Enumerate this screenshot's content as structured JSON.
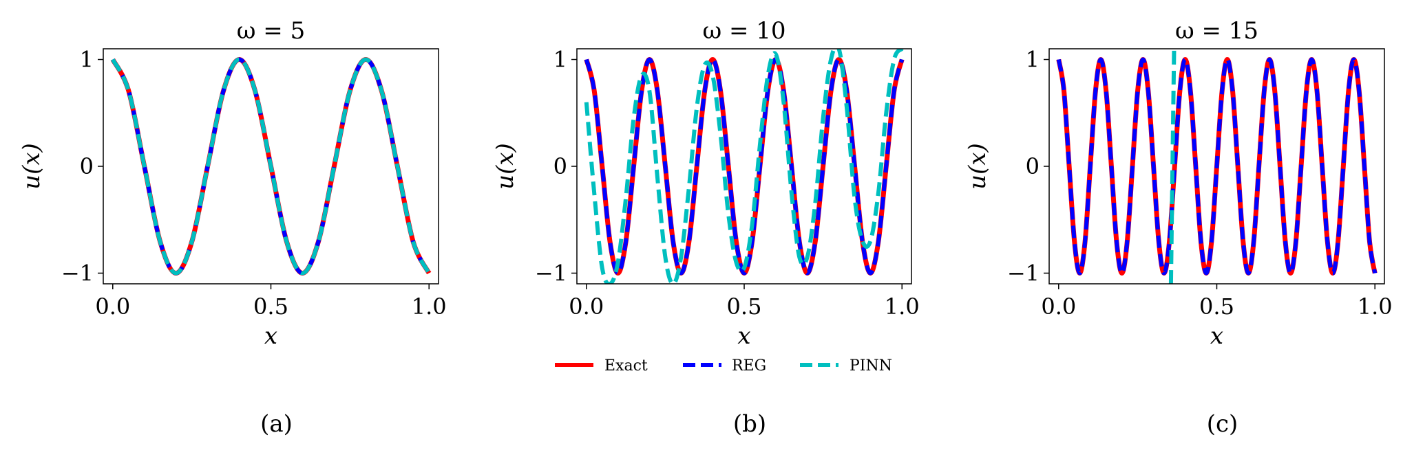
{
  "figure": {
    "legend": [
      {
        "name": "Exact",
        "color": "#ff0000",
        "dash": "solid"
      },
      {
        "name": "REG",
        "color": "#0000ff",
        "dash": "dashed"
      },
      {
        "name": "PINN",
        "color": "#00bfbf",
        "dash": "dashed"
      }
    ],
    "legend_placement": "below middle panel"
  },
  "chart_data": [
    {
      "type": "line",
      "title": "ω = 5",
      "caption": "(a)",
      "xlabel": "x",
      "ylabel": "u(x)",
      "xlim": [
        -0.03,
        1.03
      ],
      "ylim": [
        -1.1,
        1.1
      ],
      "xticks": [
        0.0,
        0.5,
        1.0
      ],
      "xticklabels": [
        "0.0",
        "0.5",
        "1.0"
      ],
      "yticks": [
        -1,
        0,
        1
      ],
      "yticklabels": [
        "−1",
        "0",
        "1"
      ],
      "grid": false,
      "series": [
        {
          "name": "Exact",
          "color": "#ff0000",
          "x": [
            0.0,
            0.05,
            0.1,
            0.15,
            0.2,
            0.25,
            0.3,
            0.35,
            0.4,
            0.45,
            0.5,
            0.55,
            0.6,
            0.65,
            0.7,
            0.75,
            0.8,
            0.85,
            0.9,
            0.95,
            1.0
          ],
          "y": [
            1.0,
            0.707,
            0.0,
            -0.707,
            -1.0,
            -0.707,
            0.0,
            0.707,
            1.0,
            0.707,
            0.0,
            -0.707,
            -1.0,
            -0.707,
            0.0,
            0.707,
            1.0,
            0.707,
            0.0,
            -0.707,
            -1.0
          ]
        },
        {
          "name": "REG",
          "color": "#0000ff",
          "x": [
            0.0,
            0.05,
            0.1,
            0.15,
            0.2,
            0.25,
            0.3,
            0.35,
            0.4,
            0.45,
            0.5,
            0.55,
            0.6,
            0.65,
            0.7,
            0.75,
            0.8,
            0.85,
            0.9,
            0.95,
            1.0
          ],
          "y": [
            1.0,
            0.707,
            0.0,
            -0.707,
            -1.0,
            -0.707,
            0.0,
            0.707,
            1.0,
            0.707,
            0.0,
            -0.707,
            -1.0,
            -0.707,
            0.0,
            0.707,
            1.0,
            0.707,
            0.0,
            -0.707,
            -1.0
          ]
        },
        {
          "name": "PINN",
          "color": "#00bfbf",
          "x": [
            0.0,
            0.05,
            0.1,
            0.15,
            0.2,
            0.25,
            0.3,
            0.35,
            0.4,
            0.45,
            0.5,
            0.55,
            0.6,
            0.65,
            0.7,
            0.75,
            0.8,
            0.85,
            0.9,
            0.95,
            1.0
          ],
          "y": [
            1.0,
            0.707,
            0.0,
            -0.707,
            -1.0,
            -0.707,
            0.0,
            0.707,
            1.0,
            0.707,
            0.0,
            -0.707,
            -1.0,
            -0.707,
            0.0,
            0.707,
            1.0,
            0.707,
            0.0,
            -0.707,
            -1.0
          ]
        }
      ]
    },
    {
      "type": "line",
      "title": "ω = 10",
      "caption": "(b)",
      "xlabel": "x",
      "ylabel": "u(x)",
      "xlim": [
        -0.03,
        1.03
      ],
      "ylim": [
        -1.1,
        1.1
      ],
      "xticks": [
        0.0,
        0.5,
        1.0
      ],
      "xticklabels": [
        "0.0",
        "0.5",
        "1.0"
      ],
      "yticks": [
        -1,
        0,
        1
      ],
      "yticklabels": [
        "−1",
        "0",
        "1"
      ],
      "grid": false,
      "series": [
        {
          "name": "Exact",
          "color": "#ff0000",
          "x": [
            0.0,
            0.025,
            0.05,
            0.075,
            0.1,
            0.125,
            0.15,
            0.175,
            0.2,
            0.225,
            0.25,
            0.275,
            0.3,
            0.325,
            0.35,
            0.375,
            0.4,
            0.425,
            0.45,
            0.475,
            0.5,
            0.525,
            0.55,
            0.575,
            0.6,
            0.625,
            0.65,
            0.675,
            0.7,
            0.725,
            0.75,
            0.775,
            0.8,
            0.825,
            0.85,
            0.875,
            0.9,
            0.925,
            0.95,
            0.975,
            1.0
          ],
          "y": [
            1.0,
            0.707,
            0.0,
            -0.707,
            -1.0,
            -0.707,
            0.0,
            0.707,
            1.0,
            0.707,
            0.0,
            -0.707,
            -1.0,
            -0.707,
            0.0,
            0.707,
            1.0,
            0.707,
            0.0,
            -0.707,
            -1.0,
            -0.707,
            0.0,
            0.707,
            1.0,
            0.707,
            0.0,
            -0.707,
            -1.0,
            -0.707,
            0.0,
            0.707,
            1.0,
            0.707,
            0.0,
            -0.707,
            -1.0,
            -0.707,
            0.0,
            0.707,
            1.0
          ]
        },
        {
          "name": "REG",
          "color": "#0000ff",
          "x": [
            0.0,
            0.025,
            0.05,
            0.075,
            0.1,
            0.125,
            0.15,
            0.175,
            0.2,
            0.225,
            0.25,
            0.275,
            0.3,
            0.325,
            0.35,
            0.375,
            0.4,
            0.425,
            0.45,
            0.475,
            0.5,
            0.525,
            0.55,
            0.575,
            0.6,
            0.625,
            0.65,
            0.675,
            0.7,
            0.725,
            0.75,
            0.775,
            0.8,
            0.825,
            0.85,
            0.875,
            0.9,
            0.925,
            0.95,
            0.975,
            1.0
          ],
          "y": [
            1.0,
            0.707,
            0.0,
            -0.707,
            -1.0,
            -0.707,
            0.0,
            0.707,
            1.0,
            0.707,
            0.0,
            -0.707,
            -1.0,
            -0.707,
            0.0,
            0.707,
            1.0,
            0.707,
            0.0,
            -0.707,
            -1.0,
            -0.707,
            0.0,
            0.707,
            1.0,
            0.707,
            0.0,
            -0.707,
            -1.0,
            -0.707,
            0.0,
            0.707,
            1.0,
            0.707,
            0.0,
            -0.707,
            -1.0,
            -0.707,
            0.0,
            0.707,
            1.0
          ]
        },
        {
          "name": "PINN",
          "color": "#00bfbf",
          "x": [
            0.0,
            0.025,
            0.05,
            0.075,
            0.1,
            0.125,
            0.15,
            0.175,
            0.2,
            0.225,
            0.25,
            0.275,
            0.3,
            0.325,
            0.35,
            0.375,
            0.4,
            0.425,
            0.45,
            0.475,
            0.5,
            0.525,
            0.55,
            0.575,
            0.6,
            0.625,
            0.65,
            0.675,
            0.7,
            0.725,
            0.75,
            0.775,
            0.8,
            0.825,
            0.85,
            0.875,
            0.9,
            0.925,
            0.95,
            0.975,
            1.0
          ],
          "y": [
            0.6,
            -0.25,
            -0.95,
            -1.1,
            -0.9,
            -0.3,
            0.45,
            0.85,
            0.7,
            -0.1,
            -0.85,
            -1.1,
            -0.85,
            -0.2,
            0.55,
            0.95,
            0.85,
            0.3,
            -0.45,
            -0.9,
            -0.95,
            -0.55,
            0.2,
            0.85,
            1.05,
            0.6,
            -0.25,
            -0.85,
            -0.85,
            -0.35,
            0.45,
            1.0,
            1.1,
            0.55,
            -0.3,
            -0.7,
            -0.7,
            -0.25,
            0.5,
            1.0,
            1.1
          ]
        }
      ]
    },
    {
      "type": "line",
      "title": "ω = 15",
      "caption": "(c)",
      "xlabel": "x",
      "ylabel": "u(x)",
      "xlim": [
        -0.03,
        1.03
      ],
      "ylim": [
        -1.1,
        1.1
      ],
      "xticks": [
        0.0,
        0.5,
        1.0
      ],
      "xticklabels": [
        "0.0",
        "0.5",
        "1.0"
      ],
      "yticks": [
        -1,
        0,
        1
      ],
      "yticklabels": [
        "−1",
        "0",
        "1"
      ],
      "grid": false,
      "series": [
        {
          "name": "Exact",
          "color": "#ff0000",
          "x": [
            0.0,
            0.0167,
            0.0333,
            0.05,
            0.0667,
            0.0833,
            0.1,
            0.1167,
            0.1333,
            0.15,
            0.1667,
            0.1833,
            0.2,
            0.2167,
            0.2333,
            0.25,
            0.2667,
            0.2833,
            0.3,
            0.3167,
            0.3333,
            0.35,
            0.3667,
            0.3833,
            0.4,
            0.4167,
            0.4333,
            0.45,
            0.4667,
            0.4833,
            0.5,
            0.5167,
            0.5333,
            0.55,
            0.5667,
            0.5833,
            0.6,
            0.6167,
            0.6333,
            0.65,
            0.6667,
            0.6833,
            0.7,
            0.7167,
            0.7333,
            0.75,
            0.7667,
            0.7833,
            0.8,
            0.8167,
            0.8333,
            0.85,
            0.8667,
            0.8833,
            0.9,
            0.9167,
            0.9333,
            0.95,
            0.9667,
            0.9833,
            1.0
          ],
          "y": [
            1.0,
            0.707,
            0.0,
            -0.707,
            -1.0,
            -0.707,
            0.0,
            0.707,
            1.0,
            0.707,
            0.0,
            -0.707,
            -1.0,
            -0.707,
            0.0,
            0.707,
            1.0,
            0.707,
            0.0,
            -0.707,
            -1.0,
            -0.707,
            0.0,
            0.707,
            1.0,
            0.707,
            0.0,
            -0.707,
            -1.0,
            -0.707,
            0.0,
            0.707,
            1.0,
            0.707,
            0.0,
            -0.707,
            -1.0,
            -0.707,
            0.0,
            0.707,
            1.0,
            0.707,
            0.0,
            -0.707,
            -1.0,
            -0.707,
            0.0,
            0.707,
            1.0,
            0.707,
            0.0,
            -0.707,
            -1.0,
            -0.707,
            0.0,
            0.707,
            1.0,
            0.707,
            0.0,
            -0.707,
            -1.0
          ]
        },
        {
          "name": "REG",
          "color": "#0000ff",
          "x": [
            0.0,
            0.0167,
            0.0333,
            0.05,
            0.0667,
            0.0833,
            0.1,
            0.1167,
            0.1333,
            0.15,
            0.1667,
            0.1833,
            0.2,
            0.2167,
            0.2333,
            0.25,
            0.2667,
            0.2833,
            0.3,
            0.3167,
            0.3333,
            0.35,
            0.3667,
            0.3833,
            0.4,
            0.4167,
            0.4333,
            0.45,
            0.4667,
            0.4833,
            0.5,
            0.5167,
            0.5333,
            0.55,
            0.5667,
            0.5833,
            0.6,
            0.6167,
            0.6333,
            0.65,
            0.6667,
            0.6833,
            0.7,
            0.7167,
            0.7333,
            0.75,
            0.7667,
            0.7833,
            0.8,
            0.8167,
            0.8333,
            0.85,
            0.8667,
            0.8833,
            0.9,
            0.9167,
            0.9333,
            0.95,
            0.9667,
            0.9833,
            1.0
          ],
          "y": [
            1.0,
            0.707,
            0.0,
            -0.707,
            -1.0,
            -0.707,
            0.0,
            0.707,
            1.0,
            0.707,
            0.0,
            -0.707,
            -1.0,
            -0.707,
            0.0,
            0.707,
            1.0,
            0.707,
            0.0,
            -0.707,
            -1.0,
            -0.707,
            0.0,
            0.707,
            1.0,
            0.707,
            0.0,
            -0.707,
            -1.0,
            -0.707,
            0.0,
            0.707,
            1.0,
            0.707,
            0.0,
            -0.707,
            -1.0,
            -0.707,
            0.0,
            0.707,
            1.0,
            0.707,
            0.0,
            -0.707,
            -1.0,
            -0.707,
            0.0,
            0.707,
            1.0,
            0.707,
            0.0,
            -0.707,
            -1.0,
            -0.707,
            0.0,
            0.707,
            1.0,
            0.707,
            0.0,
            -0.707,
            -1.0
          ]
        },
        {
          "name": "PINN",
          "color": "#00bfbf",
          "x": [
            0.355,
            0.36,
            0.365
          ],
          "y": [
            -1.1,
            0.0,
            1.1
          ]
        }
      ]
    }
  ]
}
